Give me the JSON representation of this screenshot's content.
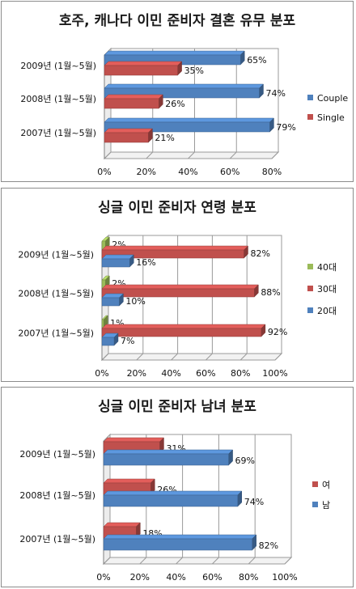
{
  "chart_data": [
    {
      "type": "bar",
      "title": "호주, 캐나다 이민 준비자 결혼 유무 분포",
      "categories": [
        "2009년 (1월~5월)",
        "2008년 (1월~5월)",
        "2007년 (1월~5월)"
      ],
      "series": [
        {
          "name": "Couple",
          "color": "#4f81bd",
          "values": [
            65,
            74,
            79
          ]
        },
        {
          "name": "Single",
          "color": "#c0504d",
          "values": [
            35,
            26,
            21
          ]
        }
      ],
      "value_labels": [
        [
          "65%",
          "74%",
          "79%"
        ],
        [
          "35%",
          "26%",
          "21%"
        ]
      ],
      "xlim": [
        0,
        80
      ],
      "ticks": [
        "0%",
        "20%",
        "40%",
        "60%",
        "80%"
      ],
      "grid": true,
      "legend": "right"
    },
    {
      "type": "bar",
      "title": "싱글 이민 준비자 연령 분포",
      "categories": [
        "2009년 (1월~5월)",
        "2008년 (1월~5월)",
        "2007년 (1월~5월)"
      ],
      "series": [
        {
          "name": "40대",
          "color": "#9bbb59",
          "values": [
            2,
            2,
            1
          ]
        },
        {
          "name": "30대",
          "color": "#c0504d",
          "values": [
            82,
            88,
            92
          ]
        },
        {
          "name": "20대",
          "color": "#4f81bd",
          "values": [
            16,
            10,
            7
          ]
        }
      ],
      "value_labels": [
        [
          "2%",
          "2%",
          "1%"
        ],
        [
          "82%",
          "88%",
          "92%"
        ],
        [
          "16%",
          "10%",
          "7%"
        ]
      ],
      "xlim": [
        0,
        100
      ],
      "ticks": [
        "0%",
        "20%",
        "40%",
        "60%",
        "80%",
        "100%"
      ],
      "grid": true,
      "legend": "right"
    },
    {
      "type": "bar",
      "title": "싱글 이민 준비자 남녀 분포",
      "categories": [
        "2009년 (1월~5월)",
        "2008년 (1월~5월)",
        "2007년 (1월~5월)"
      ],
      "series": [
        {
          "name": "여",
          "color": "#c0504d",
          "values": [
            31,
            26,
            18
          ]
        },
        {
          "name": "남",
          "color": "#4f81bd",
          "values": [
            69,
            74,
            82
          ]
        }
      ],
      "value_labels": [
        [
          "31%",
          "26%",
          "18%"
        ],
        [
          "69%",
          "74%",
          "82%"
        ]
      ],
      "xlim": [
        0,
        100
      ],
      "ticks": [
        "0%",
        "20%",
        "40%",
        "60%",
        "80%",
        "100%"
      ],
      "grid": true,
      "legend": "right"
    }
  ]
}
